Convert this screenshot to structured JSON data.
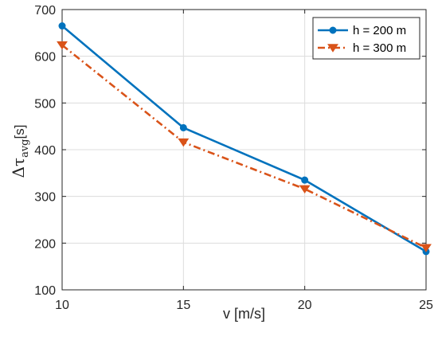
{
  "chart_data": {
    "type": "line",
    "x": [
      10,
      15,
      20,
      25
    ],
    "series": [
      {
        "name": "h = 200 m",
        "values": [
          665,
          447,
          335,
          182
        ],
        "color": "#0072BD",
        "marker": "circle",
        "line_style": "solid"
      },
      {
        "name": "h = 300 m",
        "values": [
          624,
          416,
          316,
          190
        ],
        "color": "#D95319",
        "marker": "triangle-down",
        "line_style": "dash-dot"
      }
    ],
    "xlabel": "v [m/s]",
    "ylabel": {
      "prefix": "Δτ",
      "subscript": "avg",
      "unit": "[s]"
    },
    "xlim": [
      10,
      25
    ],
    "ylim": [
      100,
      700
    ],
    "xticks": [
      "10",
      "15",
      "20",
      "25"
    ],
    "yticks": [
      "100",
      "200",
      "300",
      "400",
      "500",
      "600",
      "700"
    ],
    "grid": true,
    "legend_position": "top-right"
  }
}
